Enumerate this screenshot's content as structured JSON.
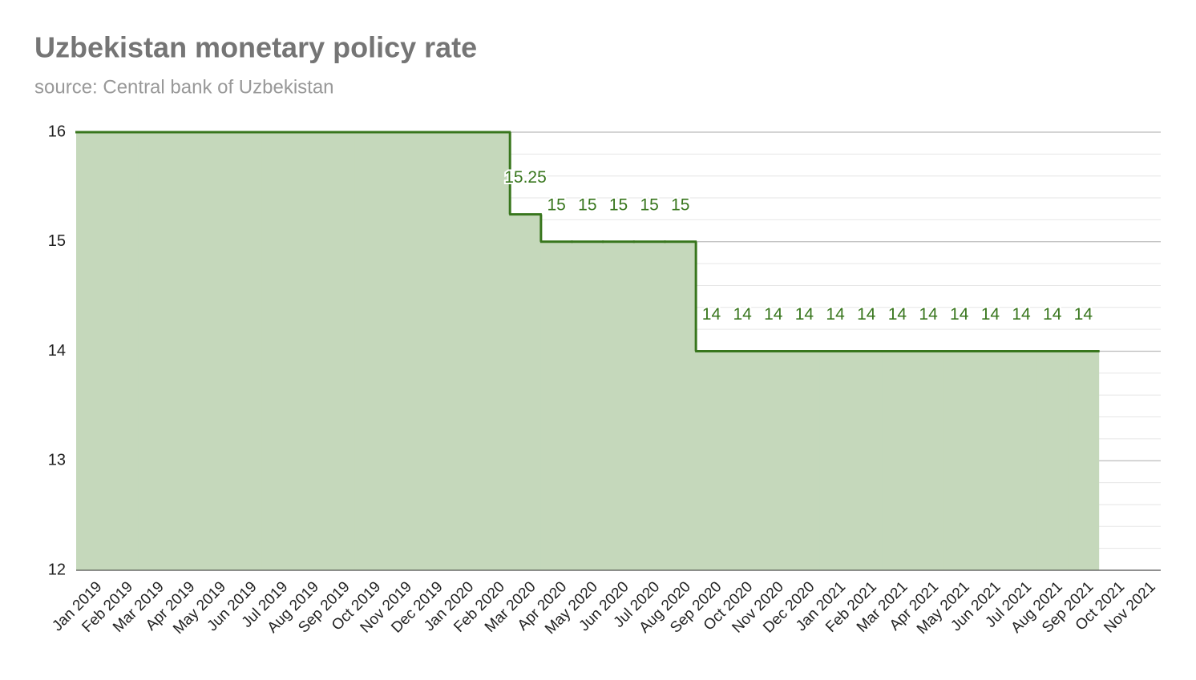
{
  "chart_data": {
    "type": "stepped-area",
    "title": "Uzbekistan monetary policy rate",
    "subtitle": "source: Central bank of Uzbekistan",
    "categories": [
      "Jan 2019",
      "Feb 2019",
      "Mar 2019",
      "Apr 2019",
      "May 2019",
      "Jun 2019",
      "Jul 2019",
      "Aug 2019",
      "Sep 2019",
      "Oct 2019",
      "Nov 2019",
      "Dec 2019",
      "Jan 2020",
      "Feb 2020",
      "Mar 2020",
      "Apr 2020",
      "May 2020",
      "Jun 2020",
      "Jul 2020",
      "Aug 2020",
      "Sep 2020",
      "Oct 2020",
      "Nov 2020",
      "Dec 2020",
      "Jan 2021",
      "Feb 2021",
      "Mar 2021",
      "Apr 2021",
      "May 2021",
      "Jun 2021",
      "Jul 2021",
      "Aug 2021",
      "Sep 2021",
      "Oct 2021",
      "Nov 2021"
    ],
    "values": [
      16,
      16,
      16,
      16,
      16,
      16,
      16,
      16,
      16,
      16,
      16,
      16,
      16,
      16,
      15.25,
      15,
      15,
      15,
      15,
      15,
      14,
      14,
      14,
      14,
      14,
      14,
      14,
      14,
      14,
      14,
      14,
      14,
      14,
      null,
      null
    ],
    "value_labels": [
      null,
      null,
      null,
      null,
      null,
      null,
      null,
      null,
      null,
      null,
      null,
      null,
      null,
      null,
      "15.25",
      "15",
      "15",
      "15",
      "15",
      "15",
      "14",
      "14",
      "14",
      "14",
      "14",
      "14",
      "14",
      "14",
      "14",
      "14",
      "14",
      "14",
      "14",
      null,
      null
    ],
    "color": "#38761d",
    "fill": "#c5d8bb",
    "ylim": [
      12,
      16
    ],
    "yticks": [
      12,
      13,
      14,
      15,
      16
    ],
    "grid": true
  }
}
